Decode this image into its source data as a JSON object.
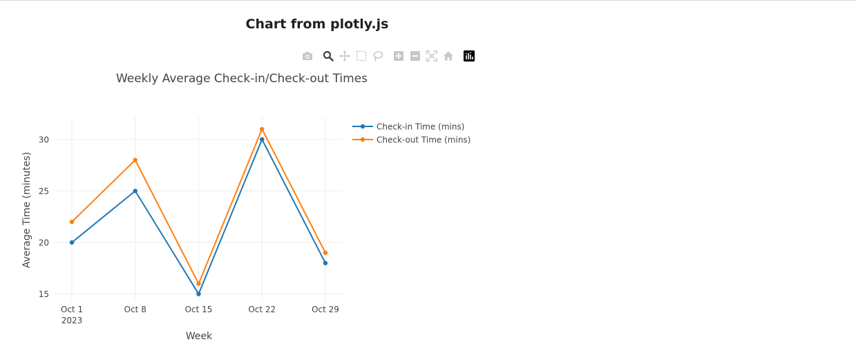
{
  "page": {
    "heading": "Chart from plotly.js"
  },
  "modebar": {
    "buttons": [
      {
        "name": "camera-icon",
        "title": "Download plot as a png"
      },
      {
        "name": "zoom-icon",
        "title": "Zoom"
      },
      {
        "name": "pan-icon",
        "title": "Pan"
      },
      {
        "name": "box-select-icon",
        "title": "Box Select"
      },
      {
        "name": "lasso-select-icon",
        "title": "Lasso Select"
      },
      {
        "name": "zoom-in-icon",
        "title": "Zoom in"
      },
      {
        "name": "zoom-out-icon",
        "title": "Zoom out"
      },
      {
        "name": "autoscale-icon",
        "title": "Autoscale"
      },
      {
        "name": "reset-axes-icon",
        "title": "Reset axes"
      },
      {
        "name": "plotly-logo-icon",
        "title": "Produced with Plotly.js"
      }
    ],
    "active": "zoom-icon"
  },
  "chart_data": {
    "type": "line",
    "title": "Weekly Average Check-in/Check-out Times",
    "xlabel": "Week",
    "ylabel": "Average Time (minutes)",
    "x": [
      "2023-10-01",
      "2023-10-08",
      "2023-10-15",
      "2023-10-22",
      "2023-10-29"
    ],
    "x_ticks": [
      {
        "label": "Oct 1",
        "sub": "2023"
      },
      {
        "label": "Oct 8",
        "sub": ""
      },
      {
        "label": "Oct 15",
        "sub": ""
      },
      {
        "label": "Oct 22",
        "sub": ""
      },
      {
        "label": "Oct 29",
        "sub": ""
      }
    ],
    "y_ticks": [
      15,
      20,
      25,
      30
    ],
    "ylim": [
      14.3,
      32.2
    ],
    "grid": true,
    "legend_position": "top-right",
    "series": [
      {
        "name": "Check-in Time (mins)",
        "color": "#1f77b4",
        "values": [
          20,
          25,
          15,
          30,
          18
        ]
      },
      {
        "name": "Check-out Time (mins)",
        "color": "#ff7f0e",
        "values": [
          22,
          28,
          16,
          31,
          19
        ]
      }
    ]
  }
}
